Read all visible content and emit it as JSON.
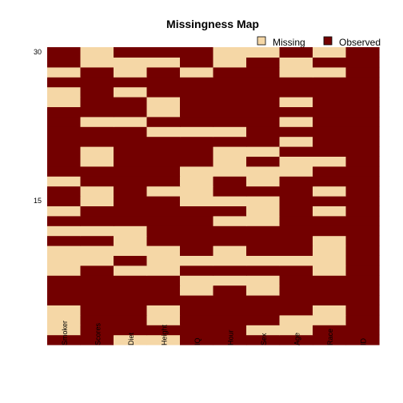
{
  "chart_data": {
    "type": "heatmap",
    "title": "Missingness Map",
    "legend": {
      "placement": "top-right",
      "items": [
        {
          "label": "Missing",
          "color": "#F5D7A6"
        },
        {
          "label": "Observed",
          "color": "#730000"
        }
      ]
    },
    "colors": {
      "missing": "#F5D7A6",
      "observed": "#730000"
    },
    "columns": [
      "Smoker",
      "Scores",
      "Diet",
      "Height",
      "IQ",
      "Hour",
      "Sex",
      "Age",
      "Race",
      "ID"
    ],
    "y_ticks": [
      15,
      30
    ],
    "row_count": 30,
    "rows_bottom_to_top": [
      [
        0,
        0,
        1,
        1,
        0,
        0,
        0,
        0,
        0,
        0
      ],
      [
        1,
        0,
        0,
        0,
        0,
        0,
        1,
        1,
        0,
        0
      ],
      [
        1,
        0,
        0,
        1,
        0,
        0,
        0,
        1,
        1,
        0
      ],
      [
        1,
        0,
        0,
        1,
        0,
        0,
        0,
        0,
        1,
        0
      ],
      [
        0,
        0,
        0,
        0,
        0,
        0,
        0,
        0,
        0,
        0
      ],
      [
        0,
        0,
        0,
        0,
        1,
        0,
        1,
        0,
        0,
        0
      ],
      [
        0,
        0,
        0,
        0,
        1,
        1,
        1,
        0,
        0,
        0
      ],
      [
        1,
        0,
        1,
        1,
        0,
        0,
        0,
        0,
        1,
        0
      ],
      [
        1,
        1,
        0,
        1,
        1,
        1,
        1,
        1,
        1,
        0
      ],
      [
        1,
        1,
        1,
        1,
        0,
        1,
        0,
        0,
        1,
        0
      ],
      [
        0,
        0,
        1,
        0,
        0,
        0,
        0,
        0,
        1,
        0
      ],
      [
        1,
        1,
        1,
        0,
        0,
        0,
        0,
        0,
        0,
        0
      ],
      [
        0,
        0,
        0,
        0,
        0,
        1,
        1,
        0,
        0,
        0
      ],
      [
        1,
        0,
        0,
        0,
        0,
        0,
        1,
        0,
        1,
        0
      ],
      [
        0,
        1,
        0,
        0,
        1,
        1,
        1,
        0,
        0,
        0
      ],
      [
        0,
        1,
        0,
        1,
        1,
        0,
        0,
        0,
        1,
        0
      ],
      [
        1,
        0,
        0,
        0,
        1,
        0,
        1,
        0,
        0,
        0
      ],
      [
        0,
        0,
        0,
        0,
        1,
        1,
        1,
        1,
        0,
        0
      ],
      [
        0,
        1,
        0,
        0,
        0,
        1,
        0,
        1,
        1,
        0
      ],
      [
        0,
        1,
        0,
        0,
        0,
        1,
        1,
        0,
        0,
        0
      ],
      [
        0,
        0,
        0,
        0,
        0,
        0,
        0,
        1,
        0,
        0
      ],
      [
        0,
        0,
        0,
        1,
        1,
        1,
        0,
        0,
        0,
        0
      ],
      [
        0,
        1,
        1,
        0,
        0,
        0,
        0,
        1,
        0,
        0
      ],
      [
        0,
        0,
        0,
        1,
        0,
        0,
        0,
        0,
        0,
        0
      ],
      [
        1,
        0,
        0,
        1,
        0,
        0,
        0,
        1,
        0,
        0
      ],
      [
        1,
        0,
        1,
        0,
        0,
        0,
        0,
        0,
        0,
        0
      ],
      [
        0,
        0,
        0,
        0,
        0,
        0,
        0,
        0,
        0,
        0
      ],
      [
        1,
        0,
        1,
        0,
        1,
        0,
        0,
        1,
        1,
        0
      ],
      [
        0,
        1,
        1,
        1,
        0,
        1,
        0,
        1,
        0,
        0
      ],
      [
        0,
        1,
        0,
        0,
        0,
        1,
        1,
        0,
        1,
        0
      ]
    ]
  }
}
